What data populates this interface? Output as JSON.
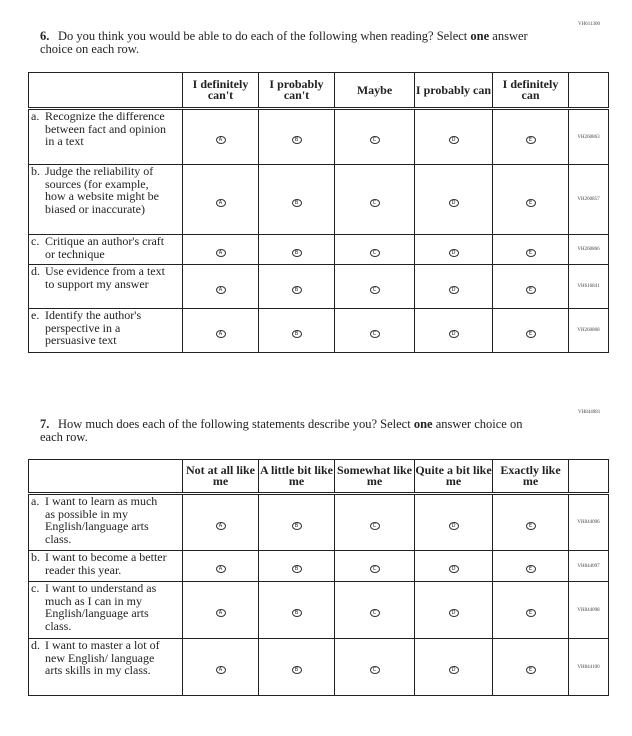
{
  "q6": {
    "code": "VH611300",
    "number": "6.",
    "text_pre": "Do you think you would be able to do each of the following when reading? Select ",
    "text_bold": "one",
    "text_post": " answer choice on each row.",
    "headers": [
      "I definitely can't",
      "I probably can't",
      "Maybe",
      "I probably can",
      "I definitely can"
    ],
    "rows": [
      {
        "letter": "a.",
        "text": "Recognize the difference between fact and opinion in a text",
        "code": "VH260863"
      },
      {
        "letter": "b.",
        "text": "Judge the reliability of sources (for example, how a website might be biased or inaccurate)",
        "code": "VH260857"
      },
      {
        "letter": "c.",
        "text": "Critique an author's craft or technique",
        "code": "VH260866"
      },
      {
        "letter": "d.",
        "text": "Use evidence from a text to support my answer",
        "code": "VH616841"
      },
      {
        "letter": "e.",
        "text": "Identify the author's perspective in a persuasive text",
        "code": "VH260868"
      }
    ]
  },
  "q7": {
    "code": "VH844081",
    "number": "7.",
    "text_pre": "How much does each of the following statements describe you? Select ",
    "text_bold": "one",
    "text_post": " answer choice on each row.",
    "headers": [
      "Not at all like me",
      "A little bit like me",
      "Somewhat like me",
      "Quite a bit like me",
      "Exactly like me"
    ],
    "rows": [
      {
        "letter": "a.",
        "text": "I want to learn as much as possible in my English/language arts class.",
        "code": "VH844096"
      },
      {
        "letter": "b.",
        "text": "I want to become a better reader this year.",
        "code": "VH844097"
      },
      {
        "letter": "c.",
        "text": "I want to understand as much as I can in my English/language arts class.",
        "code": "VH844098"
      },
      {
        "letter": "d.",
        "text": "I want to master a lot of new English/ language arts skills in my class.",
        "code": "VH844100"
      }
    ]
  },
  "bubbles": [
    "A",
    "B",
    "C",
    "D",
    "E"
  ]
}
